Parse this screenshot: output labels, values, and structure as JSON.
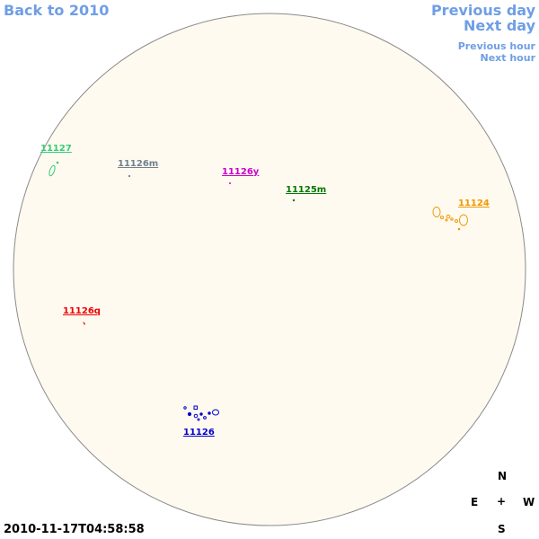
{
  "nav": {
    "back": "Back to 2010",
    "prev_day": "Previous day",
    "next_day": "Next day",
    "prev_hour": "Previous hour",
    "next_hour": "Next hour"
  },
  "disc": {
    "fill": "#fffaf0",
    "stroke": "#8a8a8a"
  },
  "regions": [
    {
      "id": "11127",
      "label": "11127",
      "color": "#33cc77"
    },
    {
      "id": "11126m",
      "label": "11126m",
      "color": "#708090"
    },
    {
      "id": "11126y",
      "label": "11126y",
      "color": "#cc00cc"
    },
    {
      "id": "11125m",
      "label": "11125m",
      "color": "#007700"
    },
    {
      "id": "11124",
      "label": "11124",
      "color": "#ee9900"
    },
    {
      "id": "11126q",
      "label": "11126q",
      "color": "#ee0000"
    },
    {
      "id": "11126",
      "label": "11126",
      "color": "#0000cc"
    }
  ],
  "compass": {
    "n": "N",
    "e": "E",
    "center": "+",
    "w": "W",
    "s": "S"
  },
  "timestamp": "2010-11-17T04:58:58"
}
